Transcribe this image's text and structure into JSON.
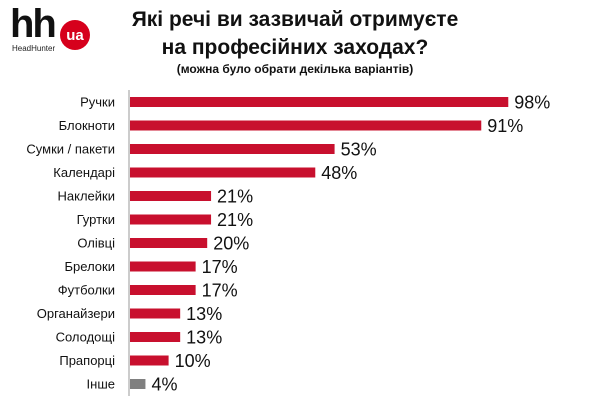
{
  "brand": {
    "logo_text": "hh",
    "logo_badge": "ua",
    "logo_sub": "HeadHunter"
  },
  "colors": {
    "bar": "#c8102e",
    "bar_other": "#808080",
    "axis": "#999999"
  },
  "chart_data": {
    "type": "bar",
    "orientation": "horizontal",
    "title_line1": "Які речі ви зазвичай отримуєте",
    "title_line2": "на професійних заходах?",
    "subtitle": "(можна було обрати декілька варіантів)",
    "categories": [
      "Ручки",
      "Блокноти",
      "Сумки / пакети",
      "Календарі",
      "Наклейки",
      "Гуртки",
      "Олівці",
      "Брелоки",
      "Футболки",
      "Органайзери",
      "Солодощі",
      "Прапорці",
      "Інше"
    ],
    "values": [
      98,
      91,
      53,
      48,
      21,
      21,
      20,
      17,
      17,
      13,
      13,
      10,
      4
    ],
    "value_labels": [
      "98%",
      "91%",
      "53%",
      "48%",
      "21%",
      "21%",
      "20%",
      "17%",
      "17%",
      "13%",
      "13%",
      "10%",
      "4%"
    ],
    "xlim": [
      0,
      100
    ],
    "grid": false,
    "legend": "none"
  }
}
